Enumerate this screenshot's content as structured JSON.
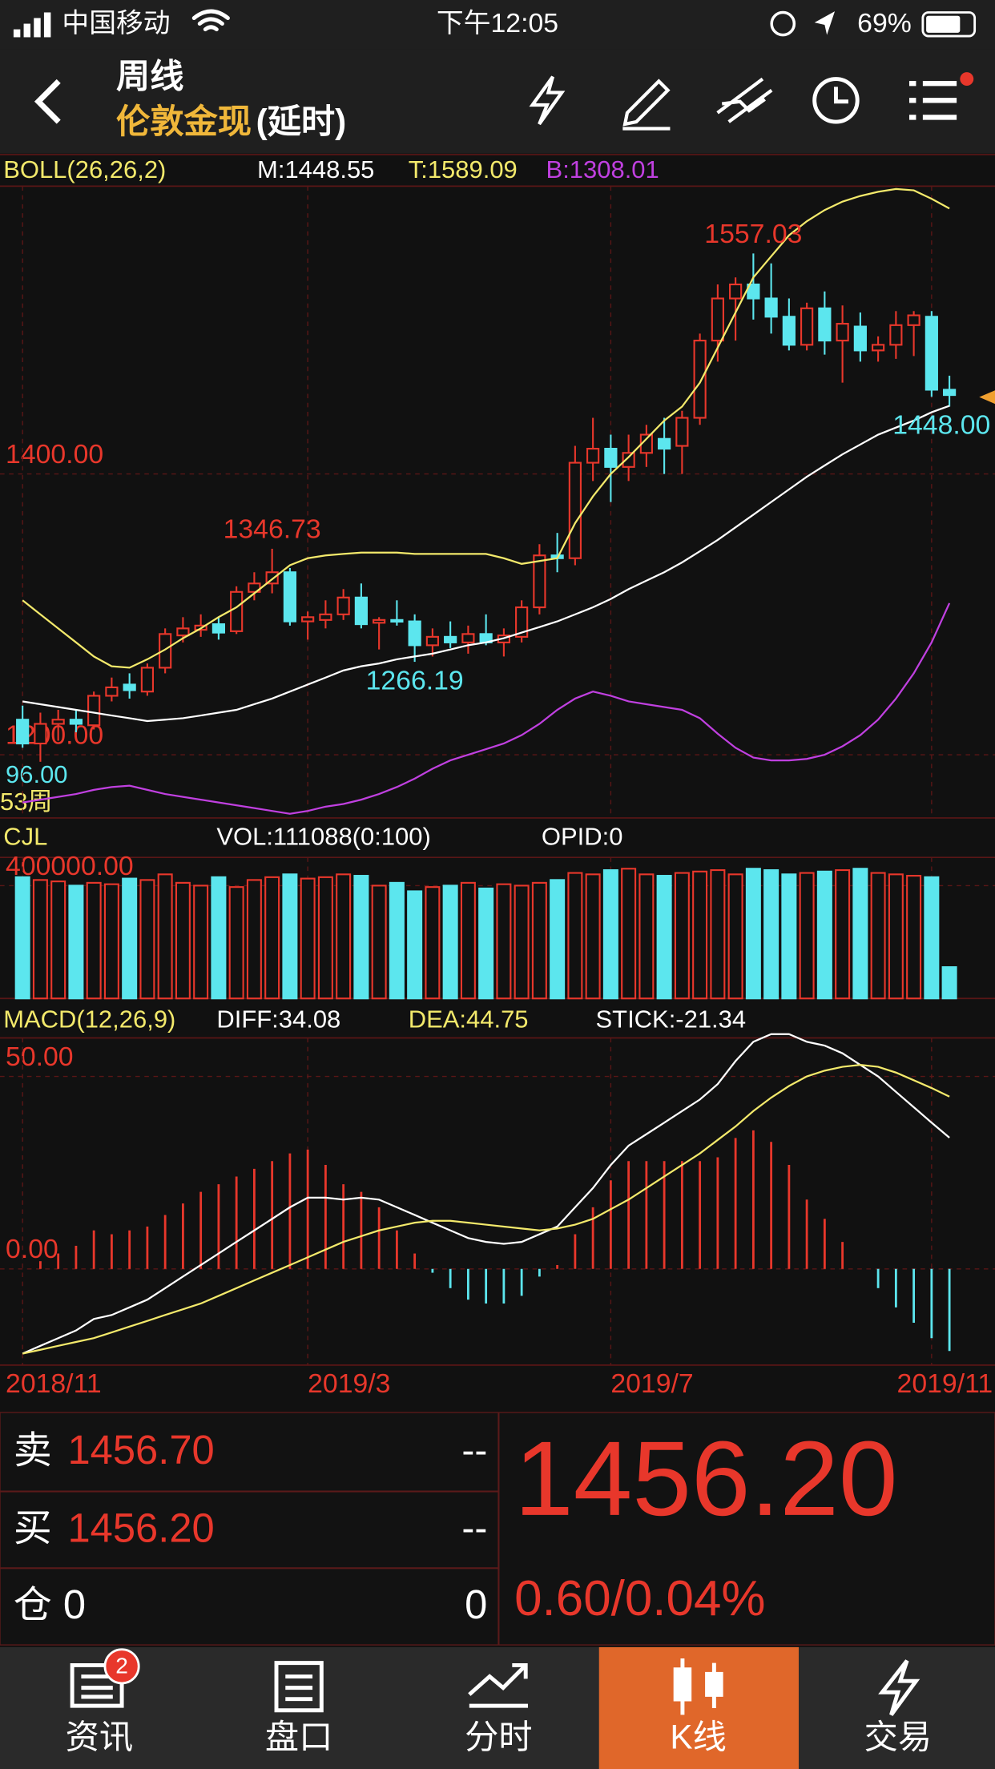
{
  "status_bar": {
    "carrier": "中国移动",
    "time": "下午12:05",
    "battery": "69%"
  },
  "header": {
    "period": "周线",
    "instrument": "伦敦金现",
    "delay": "(延时)"
  },
  "chart_data": {
    "type": "candlestick",
    "categories": [
      "2018/11",
      null,
      null,
      null,
      null,
      null,
      null,
      null,
      null,
      null,
      null,
      null,
      null,
      null,
      null,
      null,
      "2019/3",
      null,
      null,
      null,
      null,
      null,
      null,
      null,
      null,
      null,
      null,
      null,
      null,
      null,
      null,
      null,
      null,
      "2019/7",
      null,
      null,
      null,
      null,
      null,
      null,
      null,
      null,
      null,
      null,
      null,
      null,
      null,
      null,
      null,
      null,
      null,
      "2019/11",
      null
    ],
    "open": [
      1225,
      1208,
      1222,
      1225,
      1221,
      1242,
      1250,
      1245,
      1262,
      1285,
      1289,
      1293,
      1288,
      1316,
      1322,
      1330,
      1295,
      1296,
      1300,
      1312,
      1294,
      1296,
      1295,
      1278,
      1284,
      1280,
      1286,
      1280,
      1284,
      1305,
      1342,
      1340,
      1408,
      1418,
      1405,
      1415,
      1425,
      1420,
      1440,
      1495,
      1525,
      1535,
      1525,
      1512,
      1492,
      1518,
      1495,
      1505,
      1488,
      1492,
      1506,
      1512,
      1460
    ],
    "high": [
      1235,
      1230,
      1232,
      1232,
      1245,
      1255,
      1258,
      1265,
      1290,
      1298,
      1300,
      1298,
      1320,
      1330,
      1346.73,
      1333,
      1302,
      1310,
      1318,
      1322,
      1298,
      1310,
      1300,
      1290,
      1295,
      1292,
      1300,
      1290,
      1310,
      1350,
      1358,
      1420,
      1440,
      1428,
      1428,
      1435,
      1440,
      1445,
      1500,
      1535,
      1540,
      1557.03,
      1550,
      1525,
      1522,
      1530,
      1520,
      1515,
      1498,
      1516,
      1516,
      1516,
      1470
    ],
    "low": [
      1205,
      1195,
      1210,
      1216,
      1218,
      1238,
      1240,
      1242,
      1258,
      1280,
      1284,
      1282,
      1286,
      1310,
      1315,
      1292,
      1282,
      1290,
      1296,
      1290,
      1275,
      1292,
      1266.19,
      1270,
      1276,
      1272,
      1278,
      1270,
      1280,
      1300,
      1330,
      1335,
      1395,
      1380,
      1395,
      1405,
      1400,
      1400,
      1435,
      1480,
      1495,
      1510,
      1500,
      1488,
      1488,
      1485,
      1465,
      1480,
      1480,
      1482,
      1484,
      1455,
      1448
    ],
    "close": [
      1208,
      1222,
      1225,
      1222,
      1242,
      1248,
      1246,
      1262,
      1286,
      1290,
      1292,
      1287,
      1316,
      1322,
      1330,
      1295,
      1298,
      1300,
      1312,
      1293,
      1296,
      1295,
      1278,
      1284,
      1280,
      1286,
      1280,
      1285,
      1305,
      1342,
      1340,
      1408,
      1418,
      1405,
      1415,
      1428,
      1418,
      1440,
      1495,
      1525,
      1535,
      1525,
      1512,
      1492,
      1518,
      1495,
      1507,
      1488,
      1492,
      1506,
      1513,
      1460,
      1456.2
    ],
    "up_color": "#e8372b",
    "down_color": "#5ce6ee",
    "ylim": [
      1155,
      1605
    ],
    "yticks": [
      {
        "value": 1400,
        "label": "1400.00"
      },
      {
        "value": 1200,
        "label": "1200.00"
      }
    ],
    "annotations": [
      "1557.03",
      "1346.73",
      "1266.19",
      "1448.00"
    ],
    "side_labels": [
      "96.00",
      "53周"
    ],
    "boll": {
      "legend": "BOLL(26,26,2)",
      "series": [
        {
          "name": "M:1448.55",
          "color": "#ffffff",
          "values": [
            1238,
            1236,
            1234,
            1232,
            1230,
            1228,
            1226,
            1224,
            1225,
            1226,
            1228,
            1230,
            1232,
            1236,
            1240,
            1245,
            1250,
            1255,
            1260,
            1263,
            1265,
            1268,
            1270,
            1272,
            1275,
            1278,
            1280,
            1283,
            1287,
            1291,
            1295,
            1300,
            1305,
            1311,
            1318,
            1324,
            1330,
            1337,
            1345,
            1353,
            1362,
            1371,
            1380,
            1389,
            1398,
            1406,
            1414,
            1421,
            1428,
            1433,
            1438,
            1444,
            1448.55
          ]
        },
        {
          "name": "T:1589.09",
          "color": "#f3e96b",
          "values": [
            1310,
            1300,
            1290,
            1280,
            1270,
            1263,
            1262,
            1268,
            1275,
            1283,
            1290,
            1298,
            1305,
            1315,
            1325,
            1335,
            1340,
            1342,
            1343,
            1344,
            1344,
            1344,
            1343,
            1343,
            1343,
            1343,
            1343,
            1340,
            1336,
            1338,
            1340,
            1365,
            1384,
            1400,
            1412,
            1425,
            1438,
            1448,
            1465,
            1490,
            1515,
            1540,
            1555,
            1570,
            1580,
            1588,
            1594,
            1598,
            1601,
            1603,
            1602,
            1596,
            1589.09
          ]
        },
        {
          "name": "B:1308.01",
          "color": "#c040e0",
          "values": [
            1166,
            1168,
            1170,
            1172,
            1175,
            1177,
            1178,
            1175,
            1172,
            1170,
            1168,
            1166,
            1164,
            1162,
            1160,
            1158,
            1160,
            1163,
            1165,
            1168,
            1172,
            1177,
            1183,
            1190,
            1196,
            1200,
            1204,
            1208,
            1214,
            1222,
            1232,
            1240,
            1245,
            1242,
            1238,
            1236,
            1234,
            1232,
            1226,
            1215,
            1205,
            1198,
            1196,
            1196,
            1197,
            1200,
            1206,
            1214,
            1225,
            1240,
            1258,
            1280,
            1308.01
          ]
        }
      ]
    },
    "volume": {
      "title": "CJL",
      "labels": [
        "VOL:111088(0:100)",
        "OPID:0"
      ],
      "values": [
        430000,
        420000,
        415000,
        400000,
        410000,
        405000,
        425000,
        420000,
        440000,
        410000,
        400000,
        430000,
        395000,
        420000,
        430000,
        440000,
        425000,
        430000,
        440000,
        435000,
        400000,
        410000,
        380000,
        395000,
        400000,
        410000,
        390000,
        405000,
        400000,
        410000,
        420000,
        445000,
        440000,
        455000,
        460000,
        440000,
        435000,
        445000,
        450000,
        455000,
        440000,
        460000,
        455000,
        440000,
        445000,
        450000,
        455000,
        460000,
        445000,
        440000,
        435000,
        430000,
        111088
      ],
      "ylim": [
        0,
        500000
      ],
      "yticks": [
        {
          "value": 400000,
          "label": "400000.00"
        }
      ]
    },
    "macd": {
      "title": "MACD(12,26,9)",
      "series": [
        {
          "name": "DIFF:34.08",
          "color": "#ffffff",
          "values": [
            -22,
            -20,
            -18,
            -16,
            -13,
            -12,
            -10,
            -8,
            -5,
            -2,
            1,
            4,
            7,
            10,
            13,
            16,
            18.5,
            18.5,
            18,
            18.5,
            18,
            16,
            14,
            12,
            10,
            8,
            7,
            6.5,
            7,
            9,
            11,
            16,
            21,
            27,
            32,
            35,
            38,
            41,
            44,
            48,
            54,
            59,
            61,
            61,
            59,
            58,
            56,
            53,
            50,
            46,
            42,
            38,
            34.08
          ]
        },
        {
          "name": "DEA:44.75",
          "color": "#f3e96b",
          "values": [
            -22,
            -21,
            -20,
            -19,
            -18,
            -16.5,
            -15,
            -13.5,
            -12,
            -10.5,
            -9,
            -7,
            -5,
            -3,
            -1,
            1,
            3,
            5,
            7,
            8.5,
            10,
            11,
            12,
            12.5,
            12.5,
            12,
            11.5,
            11,
            10.5,
            10,
            10.5,
            11.5,
            13,
            15.5,
            18,
            21,
            24,
            27,
            30,
            33.5,
            37,
            41,
            44.5,
            47.5,
            50,
            51.5,
            52.5,
            53,
            52.5,
            51,
            49,
            47,
            44.75
          ]
        }
      ],
      "stick": {
        "name": "STICK:-21.34",
        "values": [
          0,
          2,
          4,
          6,
          10,
          9,
          10,
          11,
          14,
          17,
          20,
          22,
          24,
          26,
          28,
          30,
          31,
          27,
          22,
          20,
          16,
          10,
          4,
          -1,
          -5,
          -8,
          -9,
          -9,
          -7,
          -2,
          1,
          9,
          16,
          23,
          28,
          28,
          28,
          28,
          28,
          29,
          34,
          36,
          33,
          27,
          18,
          13,
          7,
          0,
          -5,
          -10,
          -14,
          -18,
          -21.34
        ]
      },
      "ylim": [
        -25,
        60
      ],
      "yticks": [
        {
          "value": 50,
          "label": "50.00"
        },
        {
          "value": 0,
          "label": "0.00"
        }
      ]
    }
  },
  "quote": {
    "sell": {
      "label": "卖",
      "price": "1456.70",
      "qty": "--"
    },
    "buy": {
      "label": "买",
      "price": "1456.20",
      "qty": "--"
    },
    "position": {
      "label": "仓",
      "value": "0",
      "change": "0"
    },
    "last": "1456.20",
    "change": "0.60/0.04%"
  },
  "tabs": {
    "active": 3,
    "items": [
      {
        "label": "资讯",
        "badge": "2"
      },
      {
        "label": "盘口"
      },
      {
        "label": "分时"
      },
      {
        "label": "K线"
      },
      {
        "label": "交易"
      }
    ]
  }
}
